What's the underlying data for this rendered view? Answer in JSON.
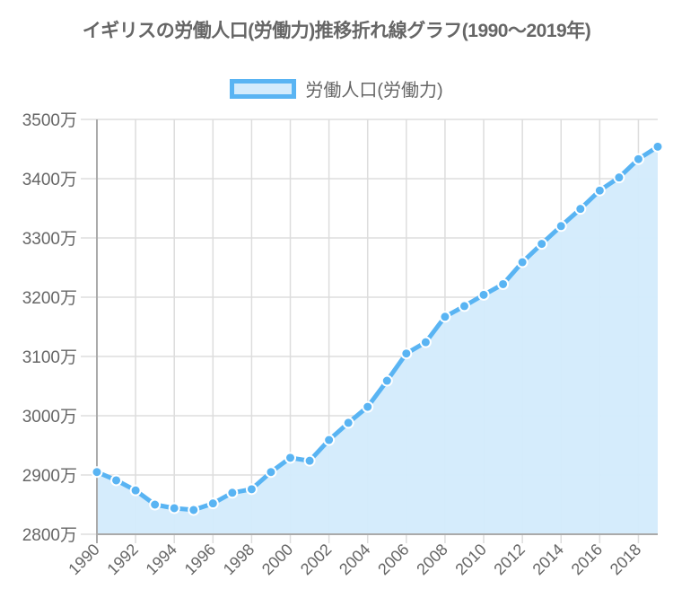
{
  "title": "イギリスの労働人口(労働力)推移折れ線グラフ(1990〜2019年)",
  "legend": {
    "label": "労働人口(労働力)"
  },
  "colors": {
    "line": "#59b4f3",
    "fill": "#d3ebfc",
    "grid": "#dddddd",
    "axis": "#aaaaaa",
    "text": "#666666"
  },
  "chart_data": {
    "type": "line",
    "title": "イギリスの労働人口(労働力)推移折れ線グラフ(1990〜2019年)",
    "xlabel": "",
    "ylabel": "",
    "unit": "万",
    "ylim": [
      2800,
      3500
    ],
    "grid": true,
    "legend_position": "top",
    "y_ticks": [
      "2800万",
      "2900万",
      "3000万",
      "3100万",
      "3200万",
      "3300万",
      "3400万",
      "3500万"
    ],
    "x_tick_labels": [
      "1990",
      "1992",
      "1994",
      "1996",
      "1998",
      "2000",
      "2002",
      "2004",
      "2006",
      "2008",
      "2010",
      "2012",
      "2014",
      "2016",
      "2018"
    ],
    "x": [
      1990,
      1991,
      1992,
      1993,
      1994,
      1995,
      1996,
      1997,
      1998,
      1999,
      2000,
      2001,
      2002,
      2003,
      2004,
      2005,
      2006,
      2007,
      2008,
      2009,
      2010,
      2011,
      2012,
      2013,
      2014,
      2015,
      2016,
      2017,
      2018,
      2019
    ],
    "series": [
      {
        "name": "労働人口(労働力)",
        "values": [
          2905,
          2891,
          2874,
          2850,
          2844,
          2841,
          2852,
          2870,
          2876,
          2905,
          2929,
          2924,
          2959,
          2988,
          3015,
          3059,
          3105,
          3124,
          3167,
          3185,
          3204,
          3222,
          3259,
          3290,
          3320,
          3349,
          3380,
          3402,
          3433,
          3454
        ]
      }
    ]
  }
}
